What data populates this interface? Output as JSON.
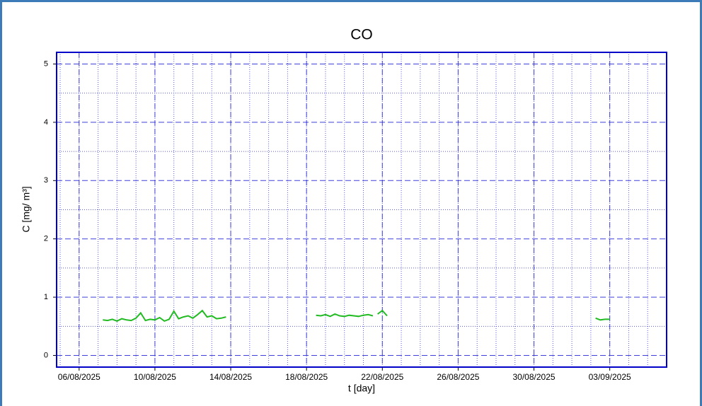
{
  "chart_data": {
    "type": "line",
    "title": "CO",
    "x_label": "t [day]",
    "y_label": "C [mg/ m³]",
    "xlim": [
      "2025-08-04 19:30",
      "2025-09-06 00:00"
    ],
    "xticks": [
      {
        "value": "2025-08-06 00:00",
        "label": "06/08/2025"
      },
      {
        "value": "2025-08-10 00:00",
        "label": "10/08/2025"
      },
      {
        "value": "2025-08-14 00:00",
        "label": "14/08/2025"
      },
      {
        "value": "2025-08-18 00:00",
        "label": "18/08/2025"
      },
      {
        "value": "2025-08-22 00:00",
        "label": "22/08/2025"
      },
      {
        "value": "2025-08-26 00:00",
        "label": "26/08/2025"
      },
      {
        "value": "2025-08-30 00:00",
        "label": "30/08/2025"
      },
      {
        "value": "2025-09-03 00:00",
        "label": "03/09/2025"
      }
    ],
    "ylim": [
      -0.2,
      5.2
    ],
    "yticks": [
      0,
      1,
      2,
      3,
      4,
      5
    ],
    "grid": true,
    "x": [
      "2025-08-07 06:00",
      "2025-08-07 12:00",
      "2025-08-07 18:00",
      "2025-08-08 00:00",
      "2025-08-08 06:00",
      "2025-08-08 12:00",
      "2025-08-08 18:00",
      "2025-08-09 00:00",
      "2025-08-09 06:00",
      "2025-08-09 12:00",
      "2025-08-09 18:00",
      "2025-08-10 00:00",
      "2025-08-10 06:00",
      "2025-08-10 12:00",
      "2025-08-10 18:00",
      "2025-08-11 00:00",
      "2025-08-11 06:00",
      "2025-08-11 12:00",
      "2025-08-11 18:00",
      "2025-08-12 00:00",
      "2025-08-12 06:00",
      "2025-08-12 12:00",
      "2025-08-12 18:00",
      "2025-08-13 00:00",
      "2025-08-13 06:00",
      "2025-08-13 12:00",
      "2025-08-13 18:00",
      "2025-08-16 00:00",
      "2025-08-18 12:00",
      "2025-08-18 18:00",
      "2025-08-19 00:00",
      "2025-08-19 06:00",
      "2025-08-19 12:00",
      "2025-08-19 18:00",
      "2025-08-20 00:00",
      "2025-08-20 06:00",
      "2025-08-20 12:00",
      "2025-08-20 18:00",
      "2025-08-21 00:00",
      "2025-08-21 06:00",
      "2025-08-21 12:00",
      "2025-08-21 15:00",
      "2025-08-21 18:00",
      "2025-08-22 00:00",
      "2025-08-22 06:00",
      "2025-08-28 00:00",
      "2025-09-02 06:00",
      "2025-09-02 12:00",
      "2025-09-02 18:00",
      "2025-09-03 00:00"
    ],
    "series": [
      {
        "name": "CO",
        "color": "#22bb22",
        "values": [
          0.61,
          0.6,
          0.62,
          0.59,
          0.63,
          0.61,
          0.6,
          0.64,
          0.73,
          0.6,
          0.62,
          0.61,
          0.65,
          0.59,
          0.62,
          0.76,
          0.63,
          0.66,
          0.68,
          0.64,
          0.7,
          0.77,
          0.66,
          0.68,
          0.63,
          0.64,
          0.66,
          null,
          0.69,
          0.68,
          0.7,
          0.67,
          0.71,
          0.68,
          0.67,
          0.69,
          0.68,
          0.67,
          0.69,
          0.7,
          0.68,
          null,
          0.71,
          0.77,
          0.68,
          null,
          0.64,
          0.61,
          0.62,
          0.62
        ]
      }
    ]
  }
}
